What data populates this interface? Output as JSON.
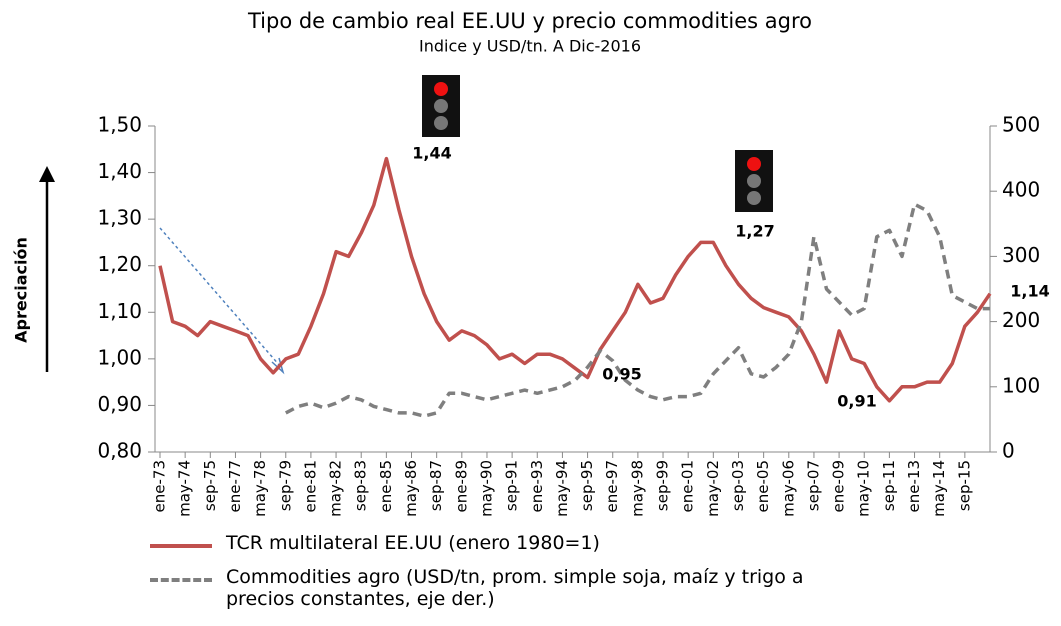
{
  "chart_data": {
    "type": "line",
    "title": "Tipo de cambio real EE.UU y precio commodities agro",
    "subtitle": "Indice y USD/tn. A Dic-2016",
    "ylabel": "Apreciación",
    "categories": [
      "ene-73",
      null,
      "may-74",
      null,
      "sep-75",
      null,
      "ene-77",
      null,
      "may-78",
      null,
      "sep-79",
      null,
      "ene-81",
      null,
      "may-82",
      null,
      "sep-83",
      null,
      "ene-85",
      null,
      "may-86",
      null,
      "sep-87",
      null,
      "ene-89",
      null,
      "may-90",
      null,
      "sep-91",
      null,
      "ene-93",
      null,
      "may-94",
      null,
      "sep-95",
      null,
      "ene-97",
      null,
      "may-98",
      null,
      "sep-99",
      null,
      "ene-01",
      null,
      "may-02",
      null,
      "sep-03",
      null,
      "ene-05",
      null,
      "may-06",
      null,
      "sep-07",
      null,
      "ene-09",
      null,
      "may-10",
      null,
      "sep-11",
      null,
      "ene-13",
      null,
      "may-14",
      null,
      "sep-15",
      null,
      null
    ],
    "series": [
      {
        "name": "TCR multilateral EE.UU (enero 1980=1)",
        "color": "#c0504d",
        "axis": "y",
        "values": [
          1.2,
          1.08,
          1.07,
          1.05,
          1.08,
          1.07,
          1.06,
          1.05,
          1.0,
          0.97,
          1.0,
          1.01,
          1.07,
          1.14,
          1.23,
          1.22,
          1.27,
          1.33,
          1.43,
          1.32,
          1.22,
          1.14,
          1.08,
          1.04,
          1.06,
          1.05,
          1.03,
          1.0,
          1.01,
          0.99,
          1.01,
          1.01,
          1.0,
          0.98,
          0.96,
          1.02,
          1.06,
          1.1,
          1.16,
          1.12,
          1.13,
          1.18,
          1.22,
          1.25,
          1.25,
          1.2,
          1.16,
          1.13,
          1.11,
          1.1,
          1.09,
          1.06,
          1.01,
          0.95,
          1.06,
          1.0,
          0.99,
          0.94,
          0.91,
          0.94,
          0.94,
          0.95,
          0.95,
          0.99,
          1.07,
          1.1,
          1.14
        ]
      },
      {
        "name": "Commodities agro (USD/tn, prom. simple soja, maíz y trigo a precios constantes, eje der.)",
        "color": "#7f7f7f",
        "axis": "y2",
        "dashed": true,
        "values": [
          null,
          null,
          null,
          null,
          null,
          null,
          null,
          null,
          null,
          null,
          60,
          70,
          75,
          68,
          75,
          85,
          80,
          70,
          65,
          60,
          60,
          55,
          60,
          90,
          90,
          85,
          80,
          85,
          90,
          95,
          90,
          95,
          100,
          110,
          130,
          155,
          140,
          110,
          95,
          85,
          80,
          85,
          85,
          90,
          120,
          140,
          160,
          120,
          115,
          130,
          150,
          200,
          330,
          250,
          230,
          210,
          220,
          330,
          340,
          300,
          380,
          370,
          330,
          240,
          230,
          220,
          220
        ]
      }
    ],
    "ylim": [
      0.8,
      1.5
    ],
    "yticks": [
      {
        "value": 0.8,
        "label": "0,80"
      },
      {
        "value": 0.9,
        "label": "0,90"
      },
      {
        "value": 1.0,
        "label": "1,00"
      },
      {
        "value": 1.1,
        "label": "1,10"
      },
      {
        "value": 1.2,
        "label": "1,20"
      },
      {
        "value": 1.3,
        "label": "1,30"
      },
      {
        "value": 1.4,
        "label": "1,40"
      },
      {
        "value": 1.5,
        "label": "1,50"
      }
    ],
    "y2lim": [
      0,
      500
    ],
    "y2ticks": [
      0,
      100,
      200,
      300,
      400,
      500
    ],
    "annotations": [
      "1,44",
      "1,27",
      "0,95",
      "0,91",
      "1,14"
    ],
    "legend": "bottom"
  }
}
